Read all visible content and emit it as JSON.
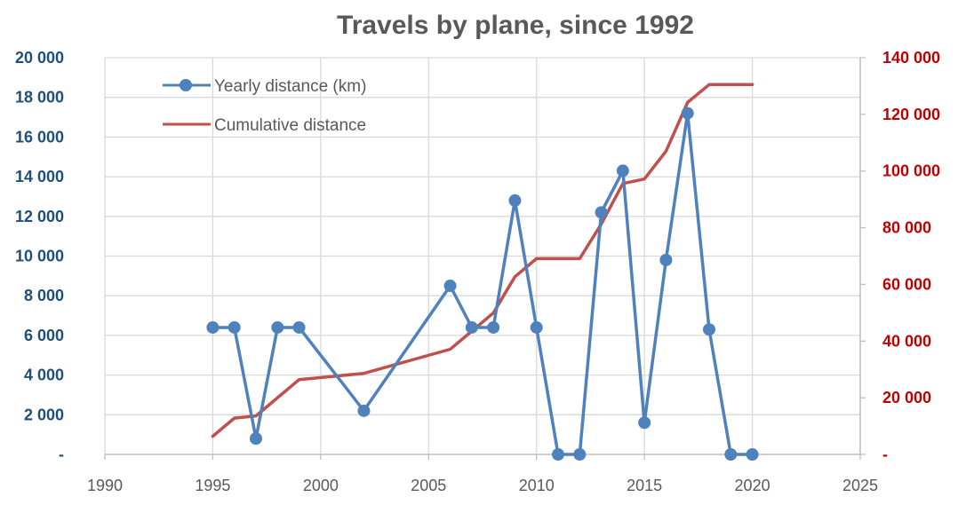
{
  "chart_data": {
    "type": "line",
    "title": "Travels by plane, since 1992",
    "xlim": [
      1990,
      2025
    ],
    "x_ticks": [
      1990,
      1995,
      2000,
      2005,
      2010,
      2015,
      2020,
      2025
    ],
    "ylim_left": [
      0,
      20000
    ],
    "left_ticks": [
      {
        "value": 0,
        "label": "-"
      },
      {
        "value": 2000,
        "label": "2 000"
      },
      {
        "value": 4000,
        "label": "4 000"
      },
      {
        "value": 6000,
        "label": "6 000"
      },
      {
        "value": 8000,
        "label": "8 000"
      },
      {
        "value": 10000,
        "label": "10 000"
      },
      {
        "value": 12000,
        "label": "12 000"
      },
      {
        "value": 14000,
        "label": "14 000"
      },
      {
        "value": 16000,
        "label": "16 000"
      },
      {
        "value": 18000,
        "label": "18 000"
      },
      {
        "value": 20000,
        "label": "20 000"
      }
    ],
    "ylim_right": [
      0,
      140000
    ],
    "right_ticks": [
      {
        "value": 0,
        "label": "-"
      },
      {
        "value": 20000,
        "label": "20 000"
      },
      {
        "value": 40000,
        "label": "40 000"
      },
      {
        "value": 60000,
        "label": "60 000"
      },
      {
        "value": 80000,
        "label": "80 000"
      },
      {
        "value": 100000,
        "label": "100 000"
      },
      {
        "value": 120000,
        "label": "120 000"
      },
      {
        "value": 140000,
        "label": "140 000"
      }
    ],
    "grid": true,
    "legend_position": "top-left",
    "series": [
      {
        "name": "Yearly distance (km)",
        "axis": "left",
        "color": "#4f81bd",
        "markers": true,
        "x": [
          1995,
          1996,
          1997,
          1998,
          1999,
          2002,
          2006,
          2007,
          2008,
          2009,
          2010,
          2011,
          2012,
          2013,
          2014,
          2015,
          2016,
          2017,
          2018,
          2019,
          2020
        ],
        "y": [
          6400,
          6400,
          800,
          6400,
          6400,
          2200,
          8500,
          6400,
          6400,
          12800,
          6400,
          0,
          0,
          12200,
          14300,
          1600,
          9800,
          17200,
          6300,
          0,
          0
        ]
      },
      {
        "name": "Cumulative distance",
        "axis": "right",
        "color": "#c0504d",
        "markers": false,
        "x": [
          1995,
          1996,
          1997,
          1998,
          1999,
          2002,
          2006,
          2007,
          2008,
          2009,
          2010,
          2011,
          2012,
          2013,
          2014,
          2015,
          2016,
          2017,
          2018,
          2019,
          2020
        ],
        "y": [
          6400,
          12800,
          13600,
          20000,
          26400,
          28600,
          37100,
          43500,
          49900,
          62700,
          69100,
          69100,
          69100,
          81300,
          95600,
          97200,
          107000,
          124200,
          130500,
          130500,
          130500
        ]
      }
    ]
  }
}
